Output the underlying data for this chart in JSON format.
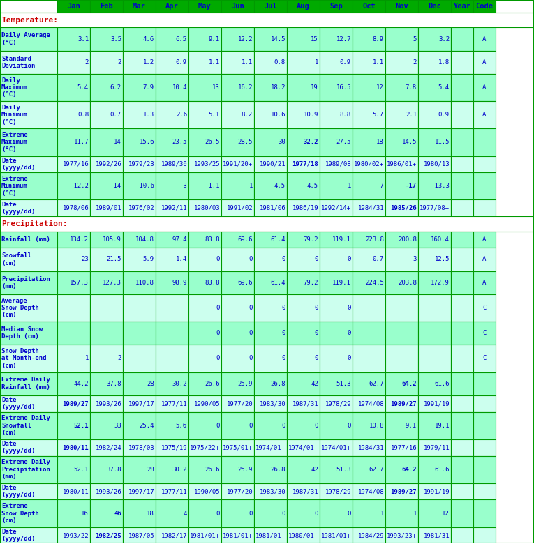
{
  "title": "Temperature:",
  "title2": "Precipitation:",
  "header_bg": "#00AA00",
  "header_text": "#0000CC",
  "row_bg_dark": "#99FFCC",
  "row_bg_light": "#CCFFEE",
  "section_header_bg": "#FFFFFF",
  "border_color": "#009900",
  "text_color": "#0000CC",
  "title_underline": true,
  "columns": [
    "",
    "Jan",
    "Feb",
    "Mar",
    "Apr",
    "May",
    "Jun",
    "Jul",
    "Aug",
    "Sep",
    "Oct",
    "Nov",
    "Dec",
    "Year",
    "Code"
  ],
  "rows": [
    {
      "label": "Temperature:",
      "is_section": true,
      "values": [
        "",
        "",
        "",
        "",
        "",
        "",
        "",
        "",
        "",
        "",
        "",
        "",
        "",
        ""
      ],
      "bold": false,
      "bg": "#FFFFFF"
    },
    {
      "label": "Daily Average\n(°C)",
      "is_section": false,
      "values": [
        "3.1",
        "3.5",
        "4.6",
        "6.5",
        "9.1",
        "12.2",
        "14.5",
        "15",
        "12.7",
        "8.9",
        "5",
        "3.2",
        "",
        "A"
      ],
      "bold_vals": [],
      "bg": "#99FFCC"
    },
    {
      "label": "Standard\nDeviation",
      "is_section": false,
      "values": [
        "2",
        "2",
        "1.2",
        "0.9",
        "1.1",
        "1.1",
        "0.8",
        "1",
        "0.9",
        "1.1",
        "2",
        "1.8",
        "",
        "A"
      ],
      "bold_vals": [],
      "bg": "#CCFFEE"
    },
    {
      "label": "Daily\nMaximum\n(°C)",
      "is_section": false,
      "values": [
        "5.4",
        "6.2",
        "7.9",
        "10.4",
        "13",
        "16.2",
        "18.2",
        "19",
        "16.5",
        "12",
        "7.8",
        "5.4",
        "",
        "A"
      ],
      "bold_vals": [],
      "bg": "#99FFCC"
    },
    {
      "label": "Daily\nMinimum\n(°C)",
      "is_section": false,
      "values": [
        "0.8",
        "0.7",
        "1.3",
        "2.6",
        "5.1",
        "8.2",
        "10.6",
        "10.9",
        "8.8",
        "5.7",
        "2.1",
        "0.9",
        "",
        "A"
      ],
      "bold_vals": [],
      "bg": "#CCFFEE"
    },
    {
      "label": "Extreme\nMaximum\n(°C)",
      "is_section": false,
      "values": [
        "11.7",
        "14",
        "15.6",
        "23.5",
        "26.5",
        "28.5",
        "30",
        "32.2",
        "27.5",
        "18",
        "14.5",
        "11.5",
        "",
        ""
      ],
      "bold_vals": [
        "32.2"
      ],
      "bg": "#99FFCC"
    },
    {
      "label": "Date\n(yyyy/dd)",
      "is_section": false,
      "values": [
        "1977/16",
        "1992/26",
        "1979/23",
        "1989/30",
        "1993/25",
        "1991/20+",
        "1990/21",
        "1977/18",
        "1989/08",
        "1980/02+",
        "1986/01+",
        "1980/13",
        "",
        ""
      ],
      "bold_vals": [
        "1977/18"
      ],
      "bg": "#CCFFEE"
    },
    {
      "label": "Extreme\nMinimum\n(°C)",
      "is_section": false,
      "values": [
        "-12.2",
        "-14",
        "-10.6",
        "-3",
        "-1.1",
        "1",
        "4.5",
        "4.5",
        "1",
        "-7",
        "-17",
        "-13.3",
        "",
        ""
      ],
      "bold_vals": [
        "-17"
      ],
      "bg": "#99FFCC"
    },
    {
      "label": "Date\n(yyyy/dd)",
      "is_section": false,
      "values": [
        "1978/06",
        "1989/01",
        "1976/02",
        "1992/11",
        "1980/03",
        "1991/02",
        "1981/06",
        "1986/19",
        "1992/14+",
        "1984/31",
        "1985/26",
        "1977/08+",
        "",
        ""
      ],
      "bold_vals": [
        "1985/26"
      ],
      "bg": "#CCFFEE"
    },
    {
      "label": "Precipitation:",
      "is_section": true,
      "values": [
        "",
        "",
        "",
        "",
        "",
        "",
        "",
        "",
        "",
        "",
        "",
        "",
        "",
        ""
      ],
      "bold": false,
      "bg": "#FFFFFF"
    },
    {
      "label": "Rainfall (mm)",
      "is_section": false,
      "values": [
        "134.2",
        "105.9",
        "104.8",
        "97.4",
        "83.8",
        "69.6",
        "61.4",
        "79.2",
        "119.1",
        "223.8",
        "200.8",
        "160.4",
        "",
        "A"
      ],
      "bold_vals": [],
      "bg": "#99FFCC"
    },
    {
      "label": "Snowfall\n(cm)",
      "is_section": false,
      "values": [
        "23",
        "21.5",
        "5.9",
        "1.4",
        "0",
        "0",
        "0",
        "0",
        "0",
        "0.7",
        "3",
        "12.5",
        "",
        "A"
      ],
      "bold_vals": [],
      "bg": "#CCFFEE"
    },
    {
      "label": "Precipitation\n(mm)",
      "is_section": false,
      "values": [
        "157.3",
        "127.3",
        "110.8",
        "98.9",
        "83.8",
        "69.6",
        "61.4",
        "79.2",
        "119.1",
        "224.5",
        "203.8",
        "172.9",
        "",
        "A"
      ],
      "bold_vals": [],
      "bg": "#99FFCC"
    },
    {
      "label": "Average\nSnow Depth\n(cm)",
      "is_section": false,
      "values": [
        "",
        "",
        "",
        "",
        "0",
        "0",
        "0",
        "0",
        "0",
        "",
        "",
        "",
        "",
        "C"
      ],
      "bold_vals": [],
      "bg": "#CCFFEE"
    },
    {
      "label": "Median Snow\nDepth (cm)",
      "is_section": false,
      "values": [
        "",
        "",
        "",
        "",
        "0",
        "0",
        "0",
        "0",
        "0",
        "",
        "",
        "",
        "",
        "C"
      ],
      "bold_vals": [],
      "bg": "#99FFCC"
    },
    {
      "label": "Snow Depth\nat Month-end\n(cm)",
      "is_section": false,
      "values": [
        "1",
        "2",
        "",
        "",
        "0",
        "0",
        "0",
        "0",
        "0",
        "",
        "",
        "",
        "",
        "C"
      ],
      "bold_vals": [],
      "bg": "#CCFFEE"
    },
    {
      "label": "Extreme Daily\nRainfall (mm)",
      "is_section": false,
      "values": [
        "44.2",
        "37.8",
        "28",
        "30.2",
        "26.6",
        "25.9",
        "26.8",
        "42",
        "51.3",
        "62.7",
        "64.2",
        "61.6",
        "",
        ""
      ],
      "bold_vals": [
        "64.2"
      ],
      "bg": "#99FFCC"
    },
    {
      "label": "Date\n(yyyy/dd)",
      "is_section": false,
      "values": [
        "1989/27",
        "1993/26",
        "1997/17",
        "1977/11",
        "1990/05",
        "1977/20",
        "1983/30",
        "1987/31",
        "1978/29",
        "1974/08",
        "1989/27",
        "1991/19",
        "",
        ""
      ],
      "bold_vals": [
        "1989/27"
      ],
      "bg": "#CCFFEE"
    },
    {
      "label": "Extreme Daily\nSnowfall\n(cm)",
      "is_section": false,
      "values": [
        "52.1",
        "33",
        "25.4",
        "5.6",
        "0",
        "0",
        "0",
        "0",
        "0",
        "10.8",
        "9.1",
        "19.1",
        "",
        ""
      ],
      "bold_vals": [
        "52.1"
      ],
      "bg": "#99FFCC"
    },
    {
      "label": "Date\n(yyyy/dd)",
      "is_section": false,
      "values": [
        "1980/11",
        "1982/24",
        "1978/03",
        "1975/19",
        "1975/22+",
        "1975/01+",
        "1974/01+",
        "1974/01+",
        "1974/01+",
        "1984/31",
        "1977/16",
        "1979/11",
        "",
        ""
      ],
      "bold_vals": [
        "1980/11"
      ],
      "bg": "#CCFFEE"
    },
    {
      "label": "Extreme Daily\nPrecipitation\n(mm)",
      "is_section": false,
      "values": [
        "52.1",
        "37.8",
        "28",
        "30.2",
        "26.6",
        "25.9",
        "26.8",
        "42",
        "51.3",
        "62.7",
        "64.2",
        "61.6",
        "",
        ""
      ],
      "bold_vals": [
        "64.2"
      ],
      "bg": "#99FFCC"
    },
    {
      "label": "Date\n(yyyy/dd)",
      "is_section": false,
      "values": [
        "1980/11",
        "1993/26",
        "1997/17",
        "1977/11",
        "1990/05",
        "1977/20",
        "1983/30",
        "1987/31",
        "1978/29",
        "1974/08",
        "1989/27",
        "1991/19",
        "",
        ""
      ],
      "bold_vals": [
        "1989/27"
      ],
      "bg": "#CCFFEE"
    },
    {
      "label": "Extreme\nSnow Depth\n(cm)",
      "is_section": false,
      "values": [
        "16",
        "46",
        "18",
        "4",
        "0",
        "0",
        "0",
        "0",
        "0",
        "1",
        "1",
        "12",
        "",
        ""
      ],
      "bold_vals": [
        "46"
      ],
      "bg": "#99FFCC"
    },
    {
      "label": "Date\n(yyyy/dd)",
      "is_section": false,
      "values": [
        "1993/22",
        "1982/25",
        "1987/05",
        "1982/17",
        "1981/01+",
        "1981/01+",
        "1981/01+",
        "1980/01+",
        "1981/01+",
        "1984/29",
        "1993/23+",
        "1981/31",
        "",
        ""
      ],
      "bold_vals": [
        "1982/25"
      ],
      "bg": "#CCFFEE"
    }
  ]
}
